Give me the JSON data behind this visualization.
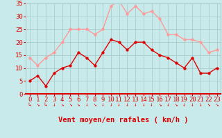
{
  "x": [
    0,
    1,
    2,
    3,
    4,
    5,
    6,
    7,
    8,
    9,
    10,
    11,
    12,
    13,
    14,
    15,
    16,
    17,
    18,
    19,
    20,
    21,
    22,
    23
  ],
  "vent_moyen": [
    5,
    7,
    3,
    8,
    10,
    11,
    16,
    14,
    11,
    16,
    21,
    20,
    17,
    20,
    20,
    17,
    15,
    14,
    12,
    10,
    14,
    8,
    8,
    10
  ],
  "rafales": [
    14,
    11,
    14,
    16,
    20,
    25,
    25,
    25,
    23,
    25,
    34,
    36,
    31,
    34,
    31,
    32,
    29,
    23,
    23,
    21,
    21,
    20,
    16,
    17
  ],
  "vent_color": "#dd0000",
  "rafales_color": "#ff9999",
  "background_color": "#c8eaea",
  "grid_color": "#aacccc",
  "ylim": [
    0,
    35
  ],
  "yticks": [
    0,
    5,
    10,
    15,
    20,
    25,
    30,
    35
  ],
  "xticks": [
    0,
    1,
    2,
    3,
    4,
    5,
    6,
    7,
    8,
    9,
    10,
    11,
    12,
    13,
    14,
    15,
    16,
    17,
    18,
    19,
    20,
    21,
    22,
    23
  ],
  "marker_size": 2.5,
  "linewidth": 1.0,
  "xlabel": "Vent moyen/en rafales ( km/h )",
  "xlabel_color": "#dd0000",
  "xlabel_fontsize": 7.5,
  "tick_fontsize": 6.5,
  "tick_color": "#dd0000",
  "arrow_symbols": [
    "↳",
    "↘",
    "↳",
    "↓",
    "↘",
    "↘",
    "↘",
    "↓",
    "↘",
    "↓",
    "↓",
    "↓",
    "↓",
    "↓",
    "↓",
    "↓",
    "↘",
    "↓",
    "↘",
    "↓",
    "↓",
    "↓",
    "↘",
    "↘"
  ]
}
